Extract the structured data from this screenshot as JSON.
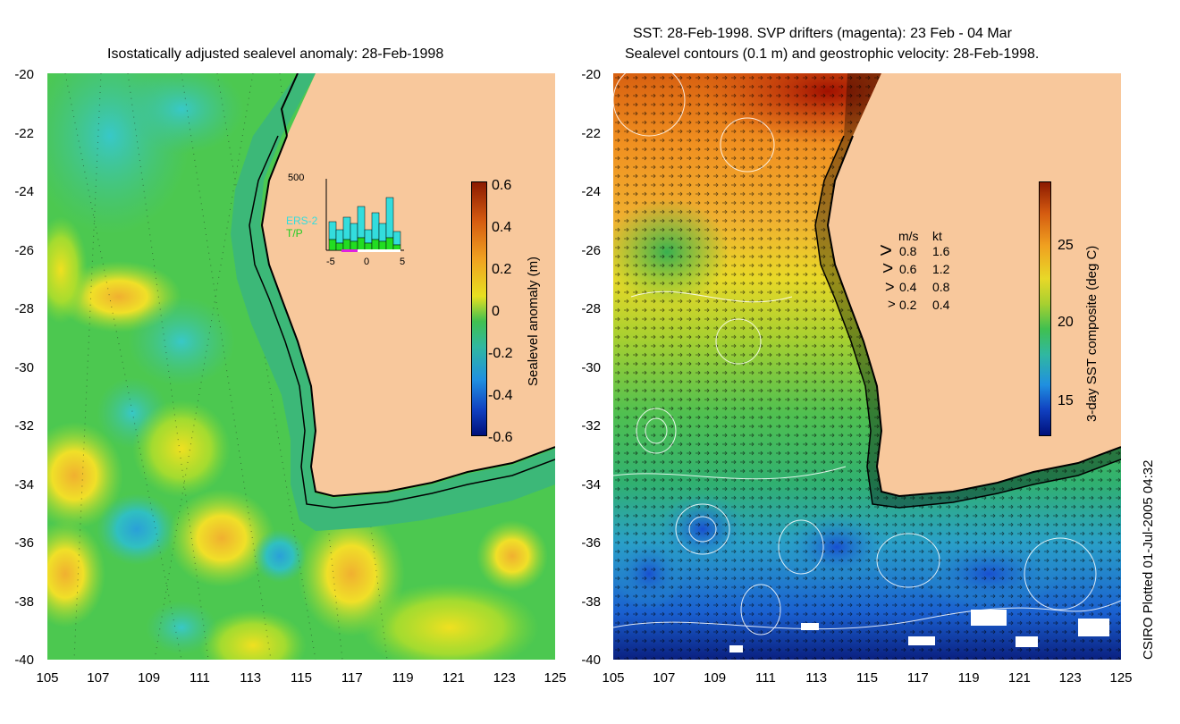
{
  "left_panel": {
    "title": "Isostatically adjusted sealevel anomaly: 28-Feb-1998",
    "y_ticks": [
      "-20",
      "-22",
      "-24",
      "-26",
      "-28",
      "-30",
      "-32",
      "-34",
      "-36",
      "-38",
      "-40"
    ],
    "x_ticks": [
      "105",
      "107",
      "109",
      "111",
      "113",
      "115",
      "117",
      "119",
      "121",
      "123",
      "125"
    ],
    "colorbar": {
      "label": "Sealevel anomaly (m)",
      "ticks": [
        "0.6",
        "0.4",
        "0.2",
        "0",
        "-0.2",
        "-0.4",
        "-0.6"
      ]
    },
    "inset": {
      "y_max_label": "500",
      "x_ticks": [
        "-5",
        "0",
        "5"
      ],
      "series_labels": [
        "ERS-2",
        "T/P"
      ],
      "ers2_color": "#33dddd",
      "tp_color": "#22dd22"
    }
  },
  "right_panel": {
    "title_line1": "SST: 28-Feb-1998. SVP drifters (magenta): 23 Feb - 04 Mar",
    "title_line2": "Sealevel contours (0.1 m) and geostrophic velocity: 28-Feb-1998.",
    "y_ticks": [
      "-20",
      "-22",
      "-24",
      "-26",
      "-28",
      "-30",
      "-32",
      "-34",
      "-36",
      "-38",
      "-40"
    ],
    "x_ticks": [
      "105",
      "107",
      "109",
      "111",
      "113",
      "115",
      "117",
      "119",
      "121",
      "123",
      "125"
    ],
    "colorbar": {
      "label": "3-day SST composite (deg C)",
      "ticks": [
        "25",
        "20",
        "15"
      ]
    },
    "velocity_legend": {
      "header_ms": "m/s",
      "header_kt": "kt",
      "rows": [
        {
          "ms": "0.8",
          "kt": "1.6"
        },
        {
          "ms": "0.6",
          "kt": "1.2"
        },
        {
          "ms": "0.4",
          "kt": "0.8"
        },
        {
          "ms": "0.2",
          "kt": "0.4"
        }
      ]
    }
  },
  "credit": "CSIRO Plotted 01-Jul-2005 04:32",
  "colors": {
    "land": "#f8c89c",
    "shelf_sla": "#3cb878",
    "ocean_sla": "#4cc850"
  }
}
